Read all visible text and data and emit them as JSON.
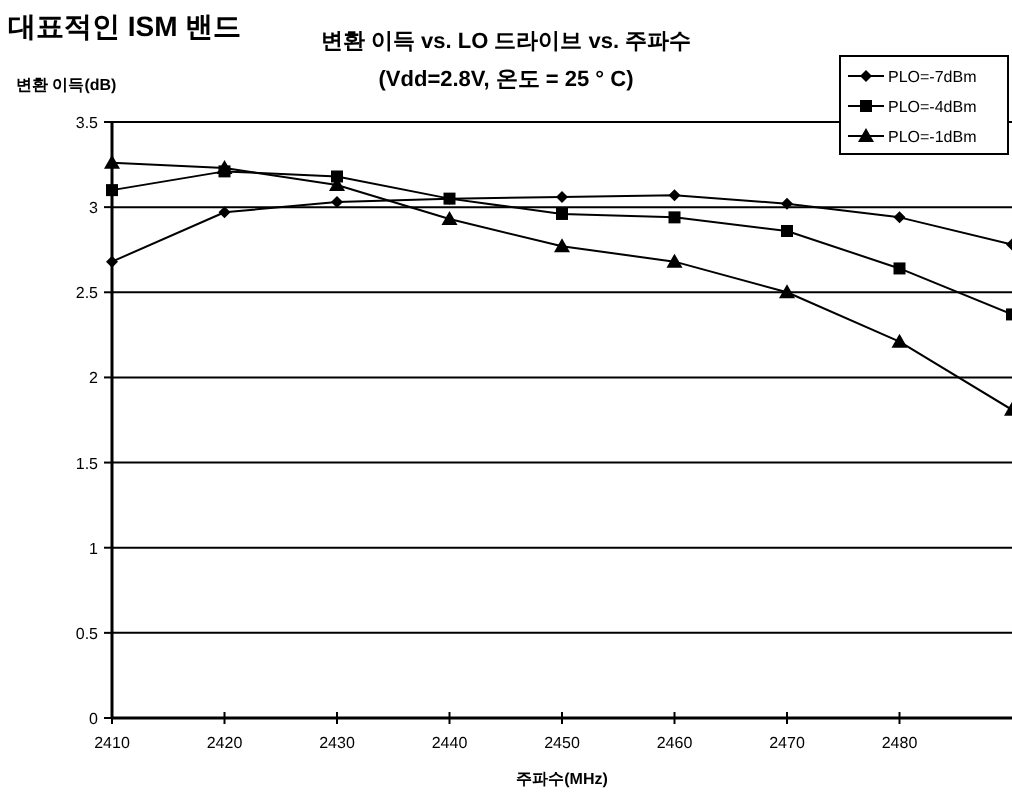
{
  "chart_data": {
    "type": "line",
    "title": "변환 이득 vs. LO 드라이브 vs. 주파수",
    "subtitle": "(Vdd=2.8V, 온도 = 25 ° C)",
    "annotations": [
      "대표적인 ISM 밴드"
    ],
    "xlabel": "주파수(MHz)",
    "ylabel": "변환 이득(dB)",
    "x": [
      2410,
      2420,
      2430,
      2440,
      2450,
      2460,
      2470,
      2480,
      2490
    ],
    "xlim": [
      2410,
      2490
    ],
    "xticks": [
      2410,
      2420,
      2430,
      2440,
      2450,
      2460,
      2470,
      2480
    ],
    "ylim": [
      0,
      3.5
    ],
    "yticks": [
      0,
      0.5,
      1,
      1.5,
      2,
      2.5,
      3,
      3.5
    ],
    "grid": "y",
    "legend": "top right",
    "series": [
      {
        "name": "PLO=-7dBm",
        "color": "#000000",
        "marker": "diamond",
        "values": [
          2.68,
          2.97,
          3.03,
          3.05,
          3.06,
          3.07,
          3.02,
          2.94,
          2.78
        ]
      },
      {
        "name": "PLO=-4dBm",
        "color": "#000000",
        "marker": "square",
        "values": [
          3.1,
          3.21,
          3.18,
          3.05,
          2.96,
          2.94,
          2.86,
          2.64,
          2.37
        ]
      },
      {
        "name": "PLO=-1dBm",
        "color": "#000000",
        "marker": "triangle",
        "values": [
          3.26,
          3.23,
          3.13,
          2.93,
          2.77,
          2.68,
          2.5,
          2.21,
          1.81
        ]
      }
    ]
  }
}
